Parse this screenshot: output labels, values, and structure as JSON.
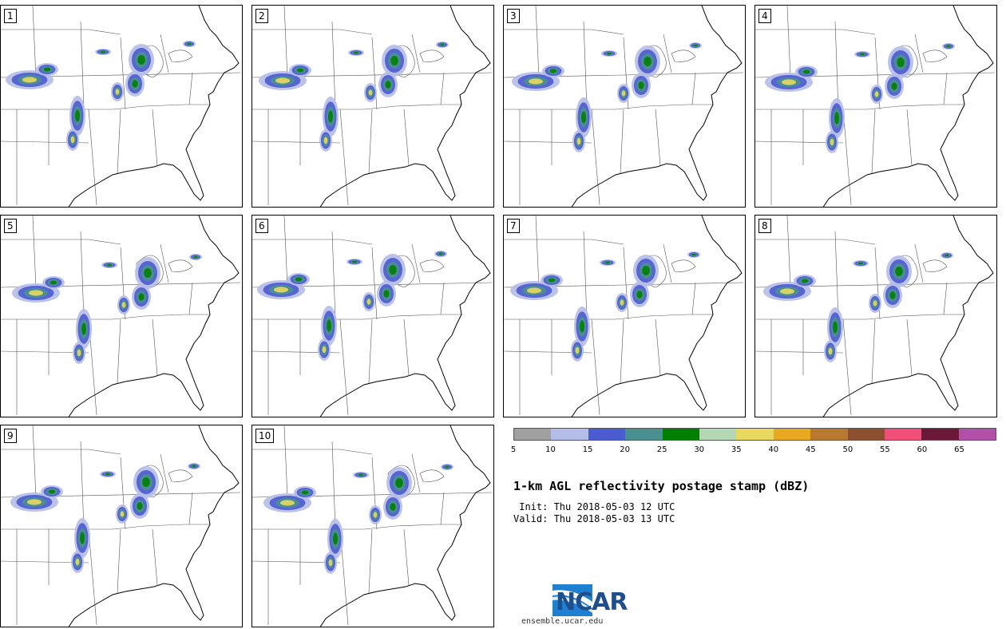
{
  "panels": [
    {
      "label": "1"
    },
    {
      "label": "2"
    },
    {
      "label": "3"
    },
    {
      "label": "4"
    },
    {
      "label": "5"
    },
    {
      "label": "6"
    },
    {
      "label": "7"
    },
    {
      "label": "8"
    },
    {
      "label": "9"
    },
    {
      "label": "10"
    }
  ],
  "colorbar": {
    "colors": [
      "#a0a0a0",
      "#b4bce8",
      "#4b5bd0",
      "#4a9090",
      "#008000",
      "#b4d8b4",
      "#e8d860",
      "#e8a820",
      "#b87830",
      "#8c5030",
      "#f05078",
      "#6c1838",
      "#b050a8"
    ],
    "ticks": [
      "5",
      "10",
      "15",
      "20",
      "25",
      "30",
      "35",
      "40",
      "45",
      "50",
      "55",
      "60",
      "65"
    ]
  },
  "title": "1-km AGL reflectivity postage stamp (dBZ)",
  "init_line": " Init: Thu 2018-05-03 12 UTC",
  "valid_line": "Valid: Thu 2018-05-03 13 UTC",
  "logo": {
    "text": "NCAR",
    "url": "ensemble.ucar.edu",
    "color": "#1f4e8c"
  }
}
